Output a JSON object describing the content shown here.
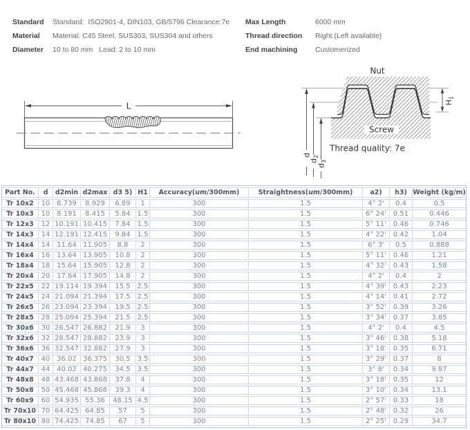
{
  "specs": {
    "left": [
      {
        "label": "Standard",
        "value": "Standard:  ISO2901-4, DIN103, GB/5796 Clearance:7e"
      },
      {
        "label": "Material",
        "value": "Material: C45 Steel, SUS303, SUS304 and others"
      },
      {
        "label": "Diameter",
        "value": "10 to 80 mm   Lead: 2 to 10 mm"
      }
    ],
    "right": [
      {
        "label": "Max Length",
        "value": "6000 mm"
      },
      {
        "label": "Thread direction",
        "value": "Right.(Left available)"
      },
      {
        "label": "End machining",
        "value": "Customerized"
      }
    ]
  },
  "diagram": {
    "length_label": "L",
    "nut_label": "Nut",
    "screw_label": "Screw",
    "thread_quality": "Thread quality: 7e",
    "dims": [
      {
        "main": "d",
        "sub": ""
      },
      {
        "main": "d",
        "sub": "2"
      },
      {
        "main": "d",
        "sub": "3"
      }
    ],
    "h1": {
      "main": "H",
      "sub": "1"
    }
  },
  "table": {
    "headers": [
      {
        "text": "Part No."
      },
      {
        "text": "d"
      },
      {
        "text": "d2min"
      },
      {
        "text": "d2max"
      },
      {
        "text": "d3 5)"
      },
      {
        "text": "H1"
      },
      {
        "pre": "Accuracy(",
        "em": "um",
        "post": "/300mm)"
      },
      {
        "pre": "Straightness(",
        "em": "um",
        "post": "/300mm)"
      },
      {
        "text": "a2)"
      },
      {
        "text": "h3)"
      },
      {
        "text": "Weight (kg/m)"
      }
    ],
    "rows": [
      [
        "Tr 10x2",
        "10",
        "8.739",
        "8.929",
        "6.89",
        "1",
        "300",
        "1.5",
        "4° 2'",
        "0.4",
        "0.5"
      ],
      [
        "Tr 10x3",
        "10",
        "8.191",
        "8.415",
        "5.84",
        "1.5",
        "300",
        "1.5",
        "6° 24'",
        "0.51",
        "0.446"
      ],
      [
        "Tr 12x3",
        "12",
        "10.191",
        "10.415",
        "7.84",
        "1.5",
        "300",
        "1.5",
        "5° 11'",
        "0.46",
        "0.746"
      ],
      [
        "Tr 14x3",
        "14",
        "12.191",
        "12.415",
        "9.84",
        "1.5",
        "300",
        "1.5",
        "4° 22'",
        "0.42",
        "1.04"
      ],
      [
        "Tr 14x4",
        "14",
        "11.64",
        "11.905",
        "8.8",
        "2",
        "300",
        "1.5",
        "6° 3'",
        "0.5",
        "0.888"
      ],
      [
        "Tr 16x4",
        "16",
        "13.64",
        "13.905",
        "10.8",
        "2",
        "300",
        "1.5",
        "5° 11'",
        "0.46",
        "1.21"
      ],
      [
        "Tr 18x4",
        "18",
        "15.64",
        "15.905",
        "12.8",
        "2",
        "300",
        "1.5",
        "4° 32'",
        "0.43",
        "1.58"
      ],
      [
        "Tr 20x4",
        "20",
        "17.64",
        "17.905",
        "14.8",
        "2",
        "300",
        "1.5",
        "4° 2'",
        "0.4",
        "2"
      ],
      [
        "Tr 22x5",
        "22",
        "19.114",
        "19.394",
        "15.5",
        "2.5",
        "300",
        "1.5",
        "4° 39'",
        "0.43",
        "2.23"
      ],
      [
        "Tr 24x5",
        "24",
        "21.094",
        "21.394",
        "17.5",
        "2.5",
        "300",
        "1.5",
        "4° 14'",
        "0.41",
        "2.72"
      ],
      [
        "Tr 26x5",
        "26",
        "23.094",
        "23.394",
        "19.5",
        "2.5",
        "300",
        "1.5",
        "3° 52'",
        "0.39",
        "3.26"
      ],
      [
        "Tr 28x5",
        "28",
        "25.094",
        "25.394",
        "21.5",
        "2.5",
        "300",
        "1.5",
        "3° 34'",
        "0.37",
        "3.85"
      ],
      [
        "Tr 30x6",
        "30",
        "26.547",
        "26.882",
        "21.9",
        "3",
        "300",
        "1.5",
        "4° 2'",
        "0.4",
        "4.5"
      ],
      [
        "Tr 32x6",
        "32",
        "28.547",
        "28.882",
        "23.9",
        "3",
        "300",
        "1.5",
        "3° 46'",
        "0.38",
        "5.18"
      ],
      [
        "Tr 36x6",
        "36",
        "32.547",
        "32.882",
        "27.9",
        "3",
        "300",
        "1.5",
        "3° 18'",
        "0.35",
        "6.71"
      ],
      [
        "Tr 40x7",
        "40",
        "36.02",
        "36.375",
        "30.5",
        "3.5",
        "300",
        "1.5",
        "3° 29'",
        "0.37",
        "8"
      ],
      [
        "Tr 44x7",
        "44",
        "40.02",
        "40.275",
        "34.5",
        "3.5",
        "300",
        "1.5",
        "3° 8'",
        "0.34",
        "9.87"
      ],
      [
        "Tr 48x8",
        "48",
        "43.468",
        "43.868",
        "37.8",
        "4",
        "300",
        "1.5",
        "3° 18'",
        "0.35",
        "12"
      ],
      [
        "Tr 50x8",
        "50",
        "45.468",
        "45.868",
        "39.3",
        "4",
        "300",
        "1.5",
        "3° 10'",
        "0.34",
        "13.1"
      ],
      [
        "Tr 60x9",
        "60",
        "54.935",
        "55.36",
        "48.15",
        "4.5",
        "300",
        "1.5",
        "2° 57'",
        "0.33",
        "18"
      ],
      [
        "Tr 70x10",
        "70",
        "64.425",
        "64.85",
        "57",
        "5",
        "300",
        "1.5",
        "2° 48'",
        "0.32",
        "26"
      ],
      [
        "Tr 80x10",
        "80",
        "74.425",
        "74.85",
        "67",
        "5",
        "300",
        "1.5",
        "2° 25'",
        "0.29",
        "34.7"
      ]
    ]
  }
}
